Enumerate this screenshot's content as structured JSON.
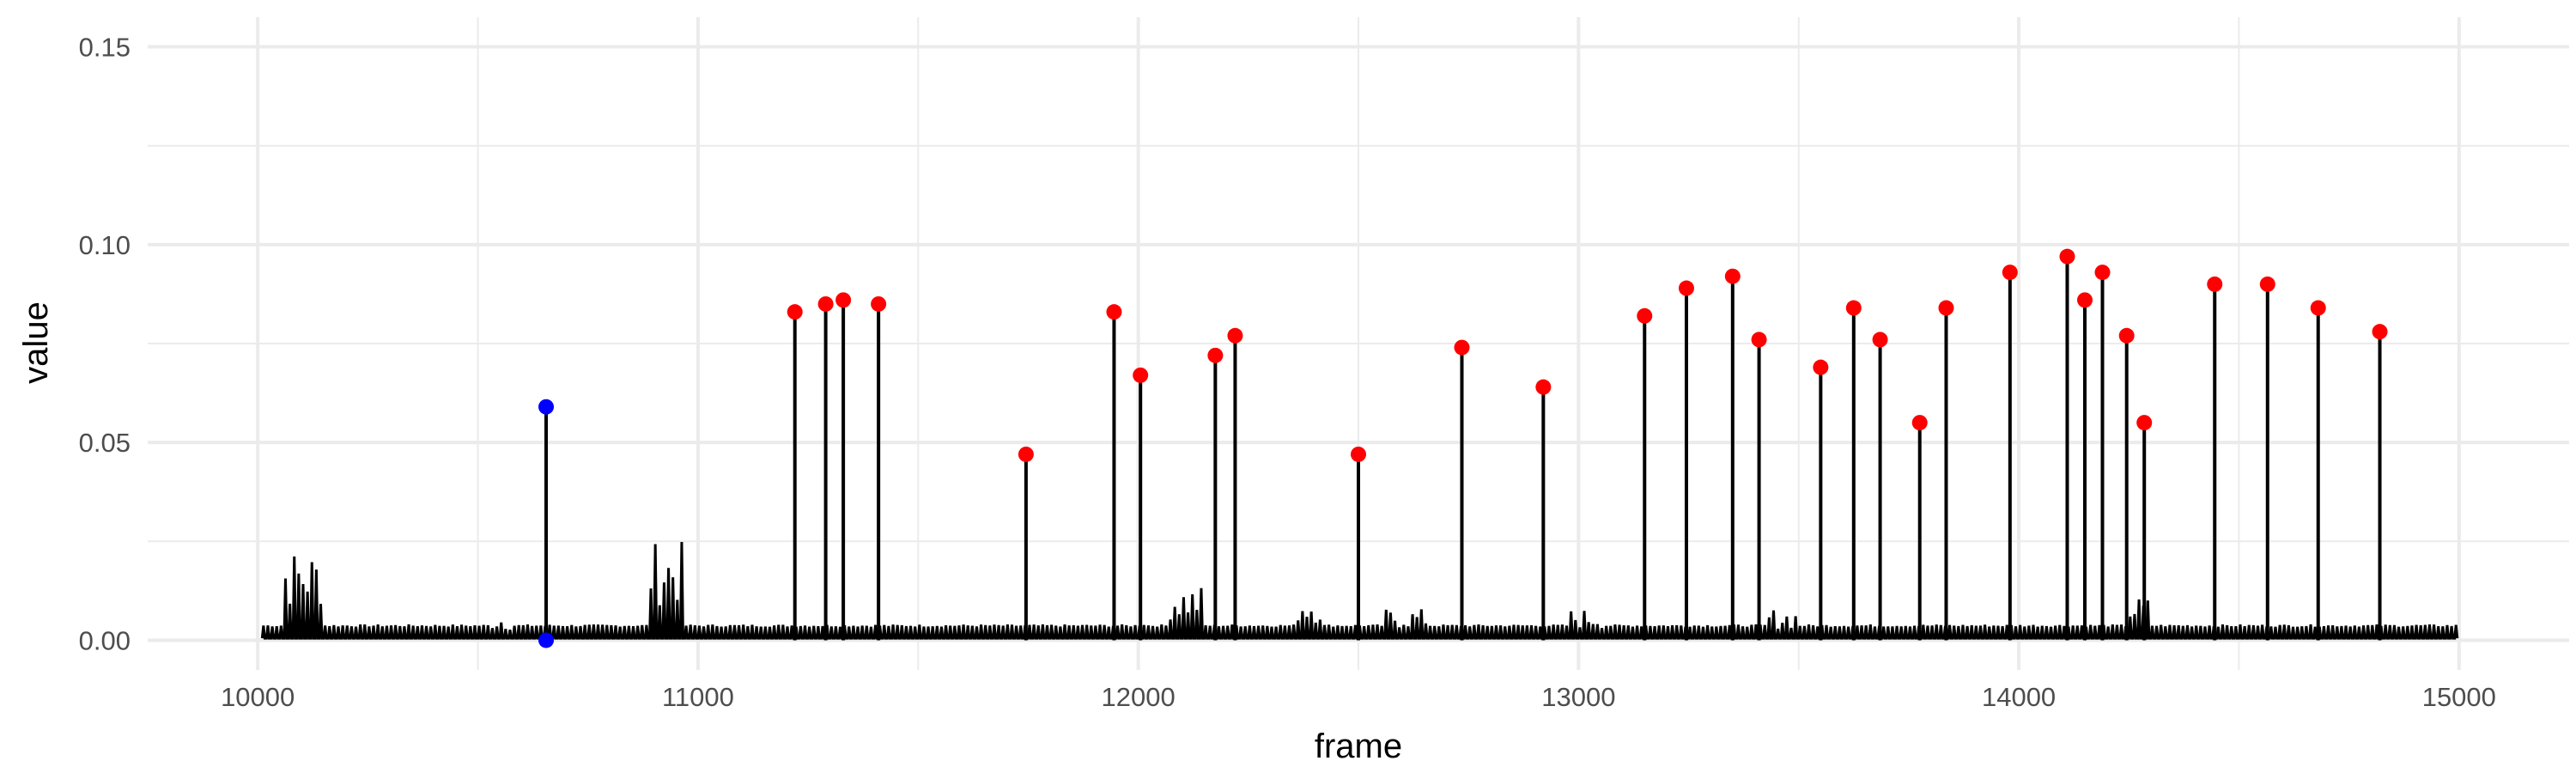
{
  "chart_data": {
    "type": "line",
    "title": "",
    "xlabel": "frame",
    "ylabel": "value",
    "xlim": [
      9750,
      15250
    ],
    "ylim": [
      -0.0075,
      0.1575
    ],
    "x_ticks": [
      10000,
      11000,
      12000,
      13000,
      14000,
      15000
    ],
    "x_tick_labels": [
      "10000",
      "11000",
      "12000",
      "13000",
      "14000",
      "15000"
    ],
    "y_ticks": [
      0.0,
      0.05,
      0.1,
      0.15
    ],
    "y_tick_labels": [
      "0.00",
      "0.05",
      "0.10",
      "0.15"
    ],
    "grid": true,
    "legend": "none",
    "colors": {
      "line": "#000000",
      "red_points": "#ff0000",
      "blue_points": "#0000ff",
      "grid": "#ebebeb"
    },
    "series": [
      {
        "kind": "line",
        "x_range": [
          10010,
          14990
        ],
        "baseline_spike_spacing": 10,
        "baseline_spike_height": 0.004,
        "activity_bursts": [
          {
            "x": [
              10060,
              10140
            ],
            "max": 0.023
          },
          {
            "x": [
              10530,
              10570
            ],
            "max": 0.007
          },
          {
            "x": [
              10890,
              10960
            ],
            "max": 0.025
          },
          {
            "x": [
              12000,
              12010
            ],
            "max": 0.008
          },
          {
            "x": [
              12070,
              12140
            ],
            "max": 0.014
          },
          {
            "x": [
              12360,
              12410
            ],
            "max": 0.012
          },
          {
            "x": [
              12560,
              12650
            ],
            "max": 0.008
          },
          {
            "x": [
              12980,
              13050
            ],
            "max": 0.008
          },
          {
            "x": [
              13430,
              13490
            ],
            "max": 0.008
          },
          {
            "x": [
              14250,
              14290
            ],
            "max": 0.011
          }
        ],
        "peaks": [
          [
            10655,
            0.059
          ],
          [
            11220,
            0.083
          ],
          [
            11290,
            0.085
          ],
          [
            11330,
            0.086
          ],
          [
            11410,
            0.085
          ],
          [
            11745,
            0.047
          ],
          [
            11945,
            0.083
          ],
          [
            12005,
            0.067
          ],
          [
            12175,
            0.072
          ],
          [
            12220,
            0.077
          ],
          [
            12500,
            0.047
          ],
          [
            12735,
            0.074
          ],
          [
            12920,
            0.064
          ],
          [
            13150,
            0.082
          ],
          [
            13245,
            0.089
          ],
          [
            13350,
            0.092
          ],
          [
            13410,
            0.076
          ],
          [
            13550,
            0.069
          ],
          [
            13625,
            0.084
          ],
          [
            13685,
            0.076
          ],
          [
            13775,
            0.055
          ],
          [
            13835,
            0.084
          ],
          [
            13980,
            0.093
          ],
          [
            14110,
            0.097
          ],
          [
            14150,
            0.086
          ],
          [
            14190,
            0.093
          ],
          [
            14245,
            0.077
          ],
          [
            14285,
            0.055
          ],
          [
            14445,
            0.09
          ],
          [
            14565,
            0.09
          ],
          [
            14680,
            0.084
          ],
          [
            14820,
            0.078
          ]
        ]
      },
      {
        "kind": "points",
        "color": "red",
        "points": [
          [
            11220,
            0.083
          ],
          [
            11290,
            0.085
          ],
          [
            11330,
            0.086
          ],
          [
            11410,
            0.085
          ],
          [
            11745,
            0.047
          ],
          [
            11945,
            0.083
          ],
          [
            12005,
            0.067
          ],
          [
            12175,
            0.072
          ],
          [
            12220,
            0.077
          ],
          [
            12500,
            0.047
          ],
          [
            12735,
            0.074
          ],
          [
            12920,
            0.064
          ],
          [
            13150,
            0.082
          ],
          [
            13245,
            0.089
          ],
          [
            13350,
            0.092
          ],
          [
            13410,
            0.076
          ],
          [
            13550,
            0.069
          ],
          [
            13625,
            0.084
          ],
          [
            13685,
            0.076
          ],
          [
            13775,
            0.055
          ],
          [
            13835,
            0.084
          ],
          [
            13980,
            0.093
          ],
          [
            14110,
            0.097
          ],
          [
            14150,
            0.086
          ],
          [
            14190,
            0.093
          ],
          [
            14245,
            0.077
          ],
          [
            14285,
            0.055
          ],
          [
            14445,
            0.09
          ],
          [
            14565,
            0.09
          ],
          [
            14680,
            0.084
          ],
          [
            14820,
            0.078
          ]
        ]
      },
      {
        "kind": "points",
        "color": "blue",
        "points": [
          [
            10655,
            0.059
          ],
          [
            10655,
            0.0
          ]
        ]
      }
    ]
  }
}
